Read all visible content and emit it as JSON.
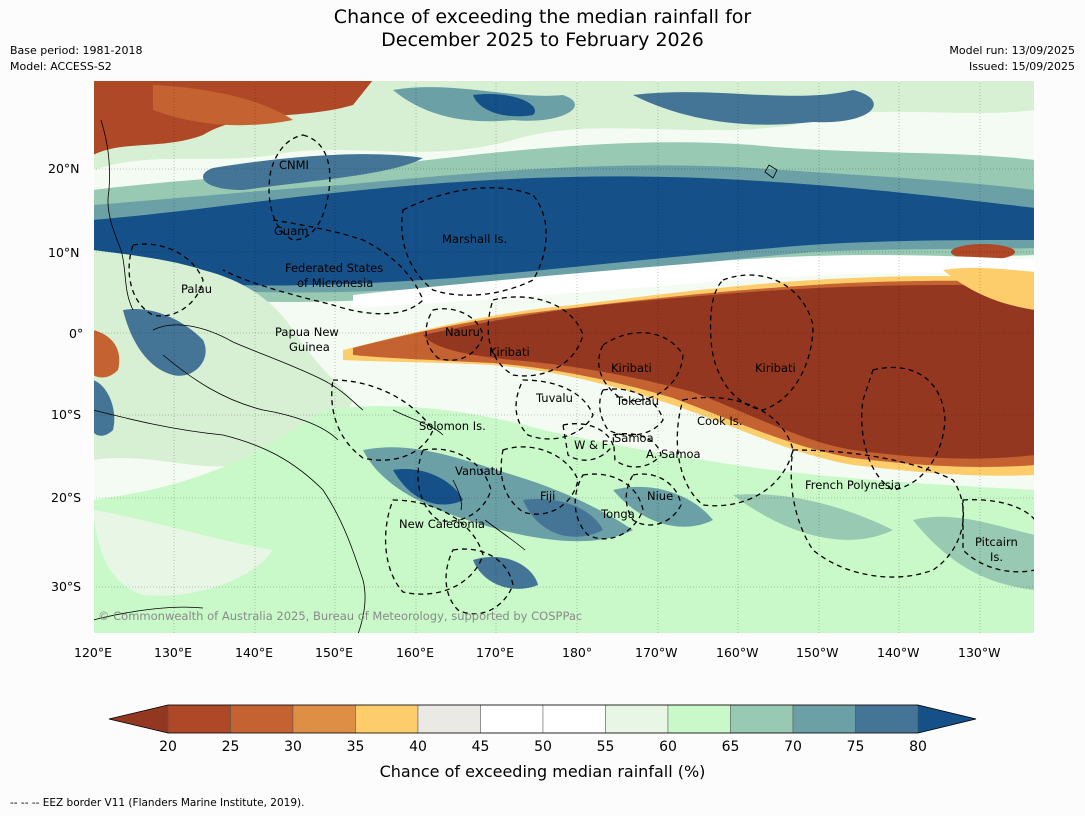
{
  "title": {
    "line1": "Chance of exceeding the median rainfall for",
    "line2": "December 2025 to February 2026"
  },
  "meta": {
    "base_period": "Base period: 1981-2018",
    "model": "Model: ACCESS-S2",
    "model_run": "Model run: 13/09/2025",
    "issued": "Issued: 15/09/2025"
  },
  "map": {
    "lat_labels": [
      "20°N",
      "10°N",
      "0°",
      "10°S",
      "20°S",
      "30°S"
    ],
    "lon_labels": [
      "120°E",
      "130°E",
      "140°E",
      "150°E",
      "160°E",
      "170°E",
      "180°",
      "170°W",
      "160°W",
      "150°W",
      "140°W",
      "130°W"
    ],
    "region_labels": [
      "CNMI",
      "Guam",
      "Marshall Is.",
      "Federated States",
      "of Micronesia",
      "Palau",
      "Papua New",
      "Guinea",
      "Nauru",
      "Kiribati",
      "Kiribati",
      "Kiribati",
      "Tuvalu",
      "Tokelau",
      "Cook Is.",
      "Solomon Is.",
      "Samoa",
      "W & F",
      "A. Samoa",
      "Vanuatu",
      "Fiji",
      "Niue",
      "French Polynesia",
      "Tonga",
      "New Caledonia",
      "Pitcairn",
      "Is."
    ],
    "credit": "© Commonwealth of Australia 2025, Bureau of Meteorology, supported by COSPPac"
  },
  "colorbar": {
    "ticks": [
      "20",
      "25",
      "30",
      "35",
      "40",
      "45",
      "50",
      "55",
      "60",
      "65",
      "70",
      "75",
      "80"
    ],
    "colors": [
      "#943720",
      "#ae4826",
      "#c56231",
      "#df8f45",
      "#fdcd6c",
      "#ebe9e4",
      "#ffffff",
      "#ffffff",
      "#e8f6e5",
      "#c9f9c8",
      "#98c9b3",
      "#6aa0a6",
      "#457596",
      "#155088"
    ],
    "title": "Chance of exceeding median rainfall (%)"
  },
  "footnote": "--  --  -- EEZ border V11 (Flanders Marine Institute, 2019)."
}
